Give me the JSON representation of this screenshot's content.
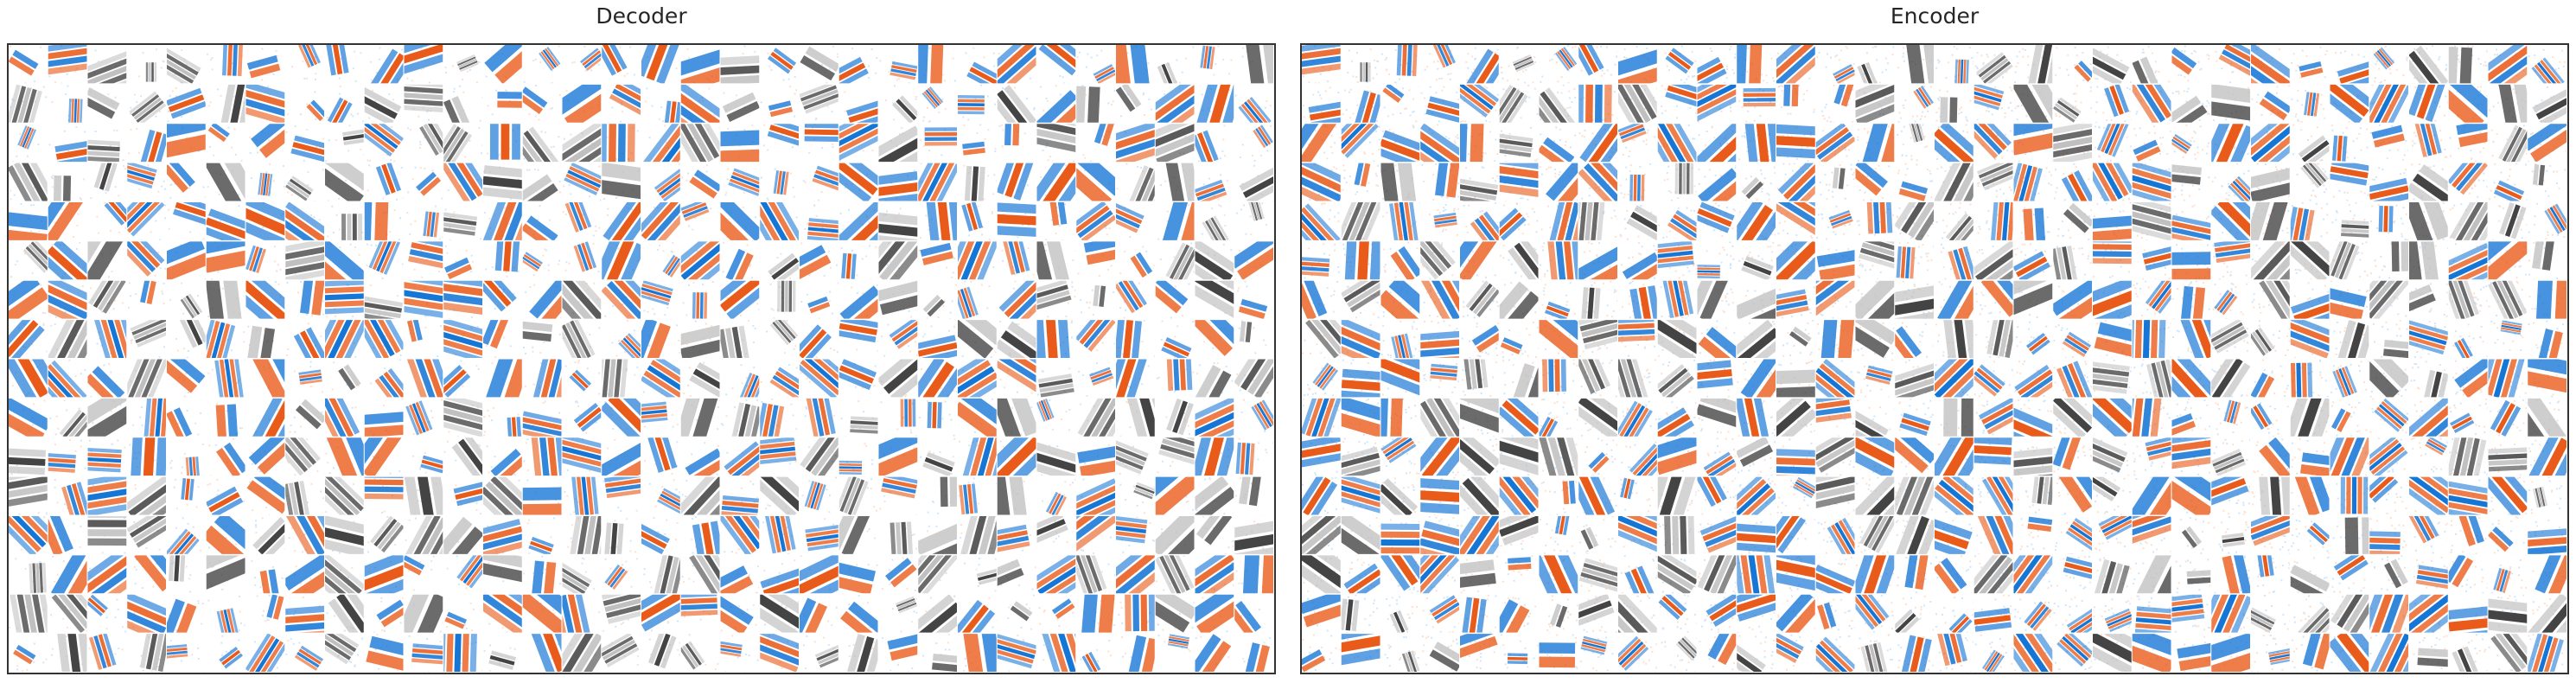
{
  "figure": {
    "panels": [
      {
        "title": "Decoder"
      },
      {
        "title": "Encoder"
      }
    ],
    "grid_rows": 16,
    "grid_cols": 32,
    "colormap": {
      "negative": "#0a6fd4",
      "neutral": "#ffffff",
      "positive": "#e8520e",
      "dark": "#3a3a3a"
    }
  }
}
